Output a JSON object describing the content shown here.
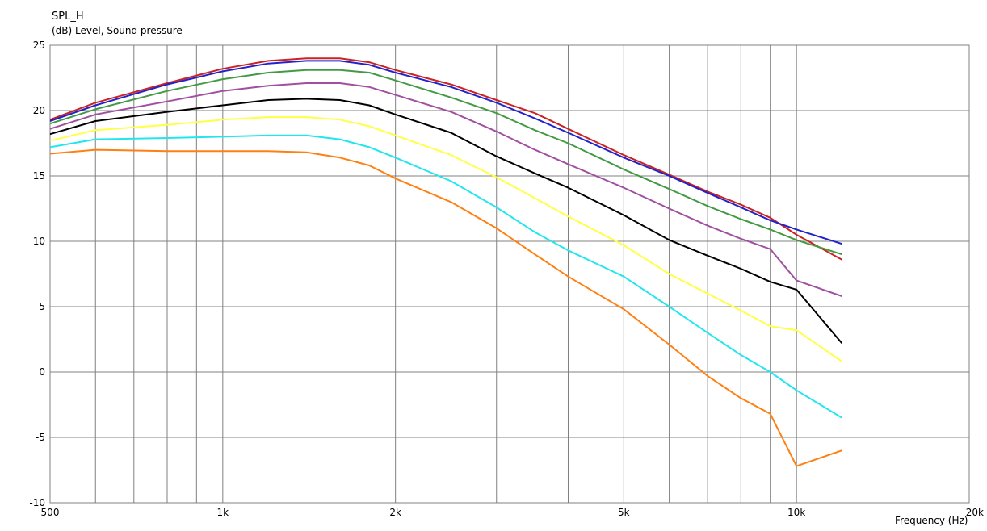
{
  "header": {
    "title": "SPL_H",
    "subtitle": "(dB)  Level, Sound pressure"
  },
  "chart_data": {
    "type": "line",
    "title": "SPL_H",
    "ylabel": "(dB)  Level, Sound pressure",
    "xlabel": "Frequency  (Hz)",
    "x_scale": "log",
    "xlim": [
      500,
      20000
    ],
    "ylim": [
      -10,
      25
    ],
    "grid": true,
    "x_ticks": [
      {
        "value": 500,
        "label": "500"
      },
      {
        "value": 1000,
        "label": "1k"
      },
      {
        "value": 2000,
        "label": "2k"
      },
      {
        "value": 5000,
        "label": "5k"
      },
      {
        "value": 10000,
        "label": "10k"
      },
      {
        "value": 20000,
        "label": "20k"
      }
    ],
    "x_minor_grid": [
      600,
      700,
      800,
      900,
      3000,
      4000,
      6000,
      7000,
      8000,
      9000
    ],
    "y_ticks": [
      {
        "value": 25,
        "label": "25"
      },
      {
        "value": 20,
        "label": "20"
      },
      {
        "value": 15,
        "label": "15"
      },
      {
        "value": 10,
        "label": "10"
      },
      {
        "value": 5,
        "label": "5"
      },
      {
        "value": 0,
        "label": "0"
      },
      {
        "value": -5,
        "label": "-5"
      },
      {
        "value": -10,
        "label": "-10"
      }
    ],
    "series": [
      {
        "color": "#cc2222",
        "points": [
          [
            500,
            19.3
          ],
          [
            600,
            20.6
          ],
          [
            800,
            22.1
          ],
          [
            1000,
            23.2
          ],
          [
            1200,
            23.8
          ],
          [
            1400,
            24.0
          ],
          [
            1600,
            24.0
          ],
          [
            1800,
            23.7
          ],
          [
            2000,
            23.1
          ],
          [
            2500,
            22.0
          ],
          [
            3000,
            20.8
          ],
          [
            3500,
            19.8
          ],
          [
            4000,
            18.6
          ],
          [
            5000,
            16.6
          ],
          [
            6000,
            15.1
          ],
          [
            7000,
            13.8
          ],
          [
            8000,
            12.8
          ],
          [
            9000,
            11.8
          ],
          [
            10000,
            10.5
          ],
          [
            12000,
            8.6
          ]
        ]
      },
      {
        "color": "#2222cc",
        "points": [
          [
            500,
            19.2
          ],
          [
            600,
            20.4
          ],
          [
            800,
            22.0
          ],
          [
            1000,
            23.0
          ],
          [
            1200,
            23.6
          ],
          [
            1400,
            23.8
          ],
          [
            1600,
            23.8
          ],
          [
            1800,
            23.5
          ],
          [
            2000,
            22.9
          ],
          [
            2500,
            21.8
          ],
          [
            3000,
            20.6
          ],
          [
            3500,
            19.4
          ],
          [
            4000,
            18.3
          ],
          [
            5000,
            16.4
          ],
          [
            6000,
            15.0
          ],
          [
            7000,
            13.7
          ],
          [
            8000,
            12.6
          ],
          [
            9000,
            11.6
          ],
          [
            10000,
            10.9
          ],
          [
            12000,
            9.8
          ]
        ]
      },
      {
        "color": "#449944",
        "points": [
          [
            500,
            19.0
          ],
          [
            600,
            20.1
          ],
          [
            800,
            21.5
          ],
          [
            1000,
            22.4
          ],
          [
            1200,
            22.9
          ],
          [
            1400,
            23.1
          ],
          [
            1600,
            23.1
          ],
          [
            1800,
            22.9
          ],
          [
            2000,
            22.3
          ],
          [
            2500,
            21.0
          ],
          [
            3000,
            19.8
          ],
          [
            3500,
            18.5
          ],
          [
            4000,
            17.5
          ],
          [
            5000,
            15.5
          ],
          [
            6000,
            14.0
          ],
          [
            7000,
            12.7
          ],
          [
            8000,
            11.7
          ],
          [
            9000,
            10.9
          ],
          [
            10000,
            10.1
          ],
          [
            12000,
            9.0
          ]
        ]
      },
      {
        "color": "#a050a0",
        "points": [
          [
            500,
            18.6
          ],
          [
            600,
            19.7
          ],
          [
            800,
            20.7
          ],
          [
            1000,
            21.5
          ],
          [
            1200,
            21.9
          ],
          [
            1400,
            22.1
          ],
          [
            1600,
            22.1
          ],
          [
            1800,
            21.8
          ],
          [
            2000,
            21.2
          ],
          [
            2500,
            19.9
          ],
          [
            3000,
            18.4
          ],
          [
            3500,
            17.0
          ],
          [
            4000,
            15.9
          ],
          [
            5000,
            14.1
          ],
          [
            6000,
            12.5
          ],
          [
            7000,
            11.2
          ],
          [
            8000,
            10.2
          ],
          [
            9000,
            9.4
          ],
          [
            10000,
            7.0
          ],
          [
            12000,
            5.8
          ]
        ]
      },
      {
        "color": "#000000",
        "points": [
          [
            500,
            18.2
          ],
          [
            600,
            19.2
          ],
          [
            800,
            19.9
          ],
          [
            1000,
            20.4
          ],
          [
            1200,
            20.8
          ],
          [
            1400,
            20.9
          ],
          [
            1600,
            20.8
          ],
          [
            1800,
            20.4
          ],
          [
            2000,
            19.7
          ],
          [
            2500,
            18.3
          ],
          [
            3000,
            16.5
          ],
          [
            3500,
            15.2
          ],
          [
            4000,
            14.1
          ],
          [
            5000,
            12.0
          ],
          [
            6000,
            10.1
          ],
          [
            7000,
            8.9
          ],
          [
            8000,
            7.9
          ],
          [
            9000,
            6.9
          ],
          [
            10000,
            6.3
          ],
          [
            12000,
            2.2
          ]
        ]
      },
      {
        "color": "#ffff44",
        "points": [
          [
            500,
            17.7
          ],
          [
            600,
            18.5
          ],
          [
            800,
            18.9
          ],
          [
            1000,
            19.3
          ],
          [
            1200,
            19.5
          ],
          [
            1400,
            19.5
          ],
          [
            1600,
            19.3
          ],
          [
            1800,
            18.8
          ],
          [
            2000,
            18.1
          ],
          [
            2500,
            16.6
          ],
          [
            3000,
            14.9
          ],
          [
            3500,
            13.3
          ],
          [
            4000,
            11.9
          ],
          [
            5000,
            9.7
          ],
          [
            6000,
            7.5
          ],
          [
            7000,
            6.0
          ],
          [
            8000,
            4.7
          ],
          [
            9000,
            3.5
          ],
          [
            10000,
            3.2
          ],
          [
            12000,
            0.8
          ]
        ]
      },
      {
        "color": "#22e6ee",
        "points": [
          [
            500,
            17.2
          ],
          [
            600,
            17.8
          ],
          [
            800,
            17.9
          ],
          [
            1000,
            18.0
          ],
          [
            1200,
            18.1
          ],
          [
            1400,
            18.1
          ],
          [
            1600,
            17.8
          ],
          [
            1800,
            17.2
          ],
          [
            2000,
            16.4
          ],
          [
            2500,
            14.6
          ],
          [
            3000,
            12.6
          ],
          [
            3500,
            10.7
          ],
          [
            4000,
            9.3
          ],
          [
            5000,
            7.3
          ],
          [
            6000,
            5.0
          ],
          [
            7000,
            3.0
          ],
          [
            8000,
            1.3
          ],
          [
            9000,
            0.0
          ],
          [
            10000,
            -1.4
          ],
          [
            12000,
            -3.5
          ]
        ]
      },
      {
        "color": "#ff7f11",
        "points": [
          [
            500,
            16.7
          ],
          [
            600,
            17.0
          ],
          [
            800,
            16.9
          ],
          [
            1000,
            16.9
          ],
          [
            1200,
            16.9
          ],
          [
            1400,
            16.8
          ],
          [
            1600,
            16.4
          ],
          [
            1800,
            15.8
          ],
          [
            2000,
            14.8
          ],
          [
            2500,
            13.0
          ],
          [
            3000,
            11.0
          ],
          [
            3500,
            9.0
          ],
          [
            4000,
            7.3
          ],
          [
            5000,
            4.8
          ],
          [
            6000,
            2.1
          ],
          [
            7000,
            -0.3
          ],
          [
            8000,
            -2.0
          ],
          [
            9000,
            -3.2
          ],
          [
            10000,
            -7.2
          ],
          [
            12000,
            -6.0
          ]
        ]
      }
    ]
  }
}
